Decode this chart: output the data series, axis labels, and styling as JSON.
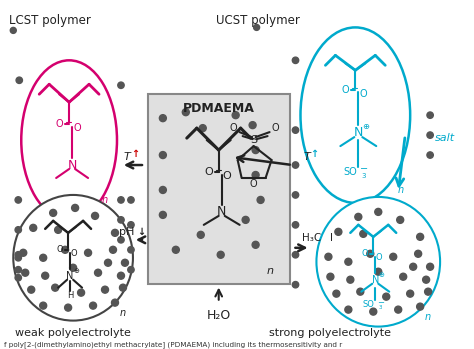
{
  "fig_width": 4.74,
  "fig_height": 3.49,
  "dpi": 100,
  "bg_color": "#ffffff",
  "lcst_label": "LCST polymer",
  "ucst_label": "UCST polymer",
  "pdmaema_label": "PDMAEMA",
  "weak_label": "weak polyelectrolyte",
  "strong_label": "strong polyelectrolyte",
  "h2o_label": "H₂O",
  "pH_label": "pH↓",
  "salt_label": "salt",
  "h3c_label": "H₃C",
  "caption": "f poly[2-(dimethylamino)ethyl methacrylate] (PDMAEMA) including its thermosensitivity and r",
  "pink_color": "#d4006e",
  "cyan_color": "#00aacc",
  "black_color": "#222222",
  "dot_color": "#555555",
  "box_bg": "#e0e0e0",
  "box_edge": "#888888"
}
